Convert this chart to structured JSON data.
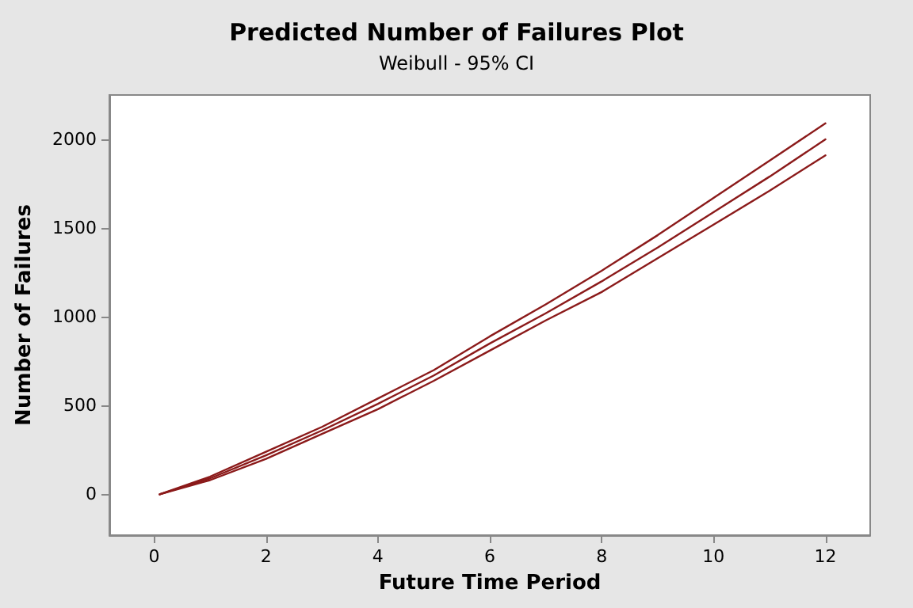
{
  "chart_data": {
    "type": "line",
    "title": "Predicted Number of Failures Plot",
    "subtitle": "Weibull - 95% CI",
    "xlabel": "Future Time Period",
    "ylabel": "Number of Failures",
    "x": [
      0.1,
      1,
      2,
      3,
      4,
      5,
      6,
      7,
      8,
      9,
      10,
      11,
      12
    ],
    "series": [
      {
        "color": "#8b1a1a",
        "values": [
          0,
          100,
          240,
          380,
          540,
          700,
          890,
          1070,
          1260,
          1460,
          1670,
          1880,
          2090
        ]
      },
      {
        "color": "#8b1a1a",
        "values": [
          0,
          90,
          220,
          360,
          510,
          670,
          850,
          1020,
          1200,
          1390,
          1590,
          1790,
          2000
        ]
      },
      {
        "color": "#8b1a1a",
        "values": [
          0,
          80,
          200,
          340,
          480,
          640,
          810,
          980,
          1140,
          1330,
          1520,
          1710,
          1910
        ]
      }
    ],
    "xlim": [
      -0.8,
      12.8
    ],
    "xticks": [
      0,
      2,
      4,
      6,
      8,
      10,
      12
    ],
    "ylim": [
      -230,
      2250
    ],
    "yticks": [
      0,
      500,
      1000,
      1500,
      2000
    ],
    "grid": false,
    "marker": "none",
    "line_style": "solid"
  }
}
